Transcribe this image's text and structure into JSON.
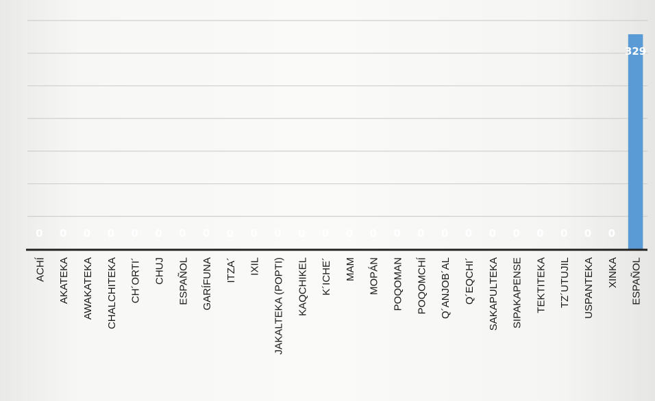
{
  "chart_data": {
    "type": "bar",
    "categories": [
      "ACHÍ",
      "AKATEKA",
      "AWAKATEKA",
      "CHALCHITEKA",
      "CH´ORTI´",
      "CHUJ",
      "ESPAÑOL",
      "GARÍFUNA",
      "ITZA´",
      "IXIL",
      "JAKALTEKA (POPTI)",
      "KAQCHIKEL",
      "K´ICHE´",
      "MAM",
      "MOPÁN",
      "POQOMAN",
      "POQOMCHÍ",
      "Q´ANJOB´AL",
      "Q´EQCHI´",
      "SAKAPULTEKA",
      "SIPAKAPENSE",
      "TEKTITEKA",
      "TZ´UTUJIL",
      "USPANTEKA",
      "XINKA",
      "ESPAÑOL"
    ],
    "values": [
      0,
      0,
      0,
      0,
      0,
      0,
      0,
      0,
      0,
      0,
      0,
      0,
      0,
      0,
      0,
      0,
      0,
      0,
      0,
      0,
      0,
      0,
      0,
      0,
      0,
      329
    ],
    "data_labels": [
      "0",
      "0",
      "0",
      "0",
      "0",
      "0",
      "0",
      "0",
      "0",
      "0",
      "0",
      "0",
      "0",
      "0",
      "0",
      "0",
      "0",
      "0",
      "0",
      "0",
      "0",
      "0",
      "0",
      "0",
      "0",
      "329"
    ],
    "ylim": [
      0,
      350
    ],
    "gridlines": [
      0,
      50,
      100,
      150,
      200,
      250,
      300,
      350
    ],
    "grid": true,
    "legend": "none",
    "bar_color": "#5b9bd5",
    "label_color": "#ffffff",
    "axis_color": "#222222",
    "grid_color": "#cfcfcd",
    "text_color": "#1a1a1a"
  }
}
